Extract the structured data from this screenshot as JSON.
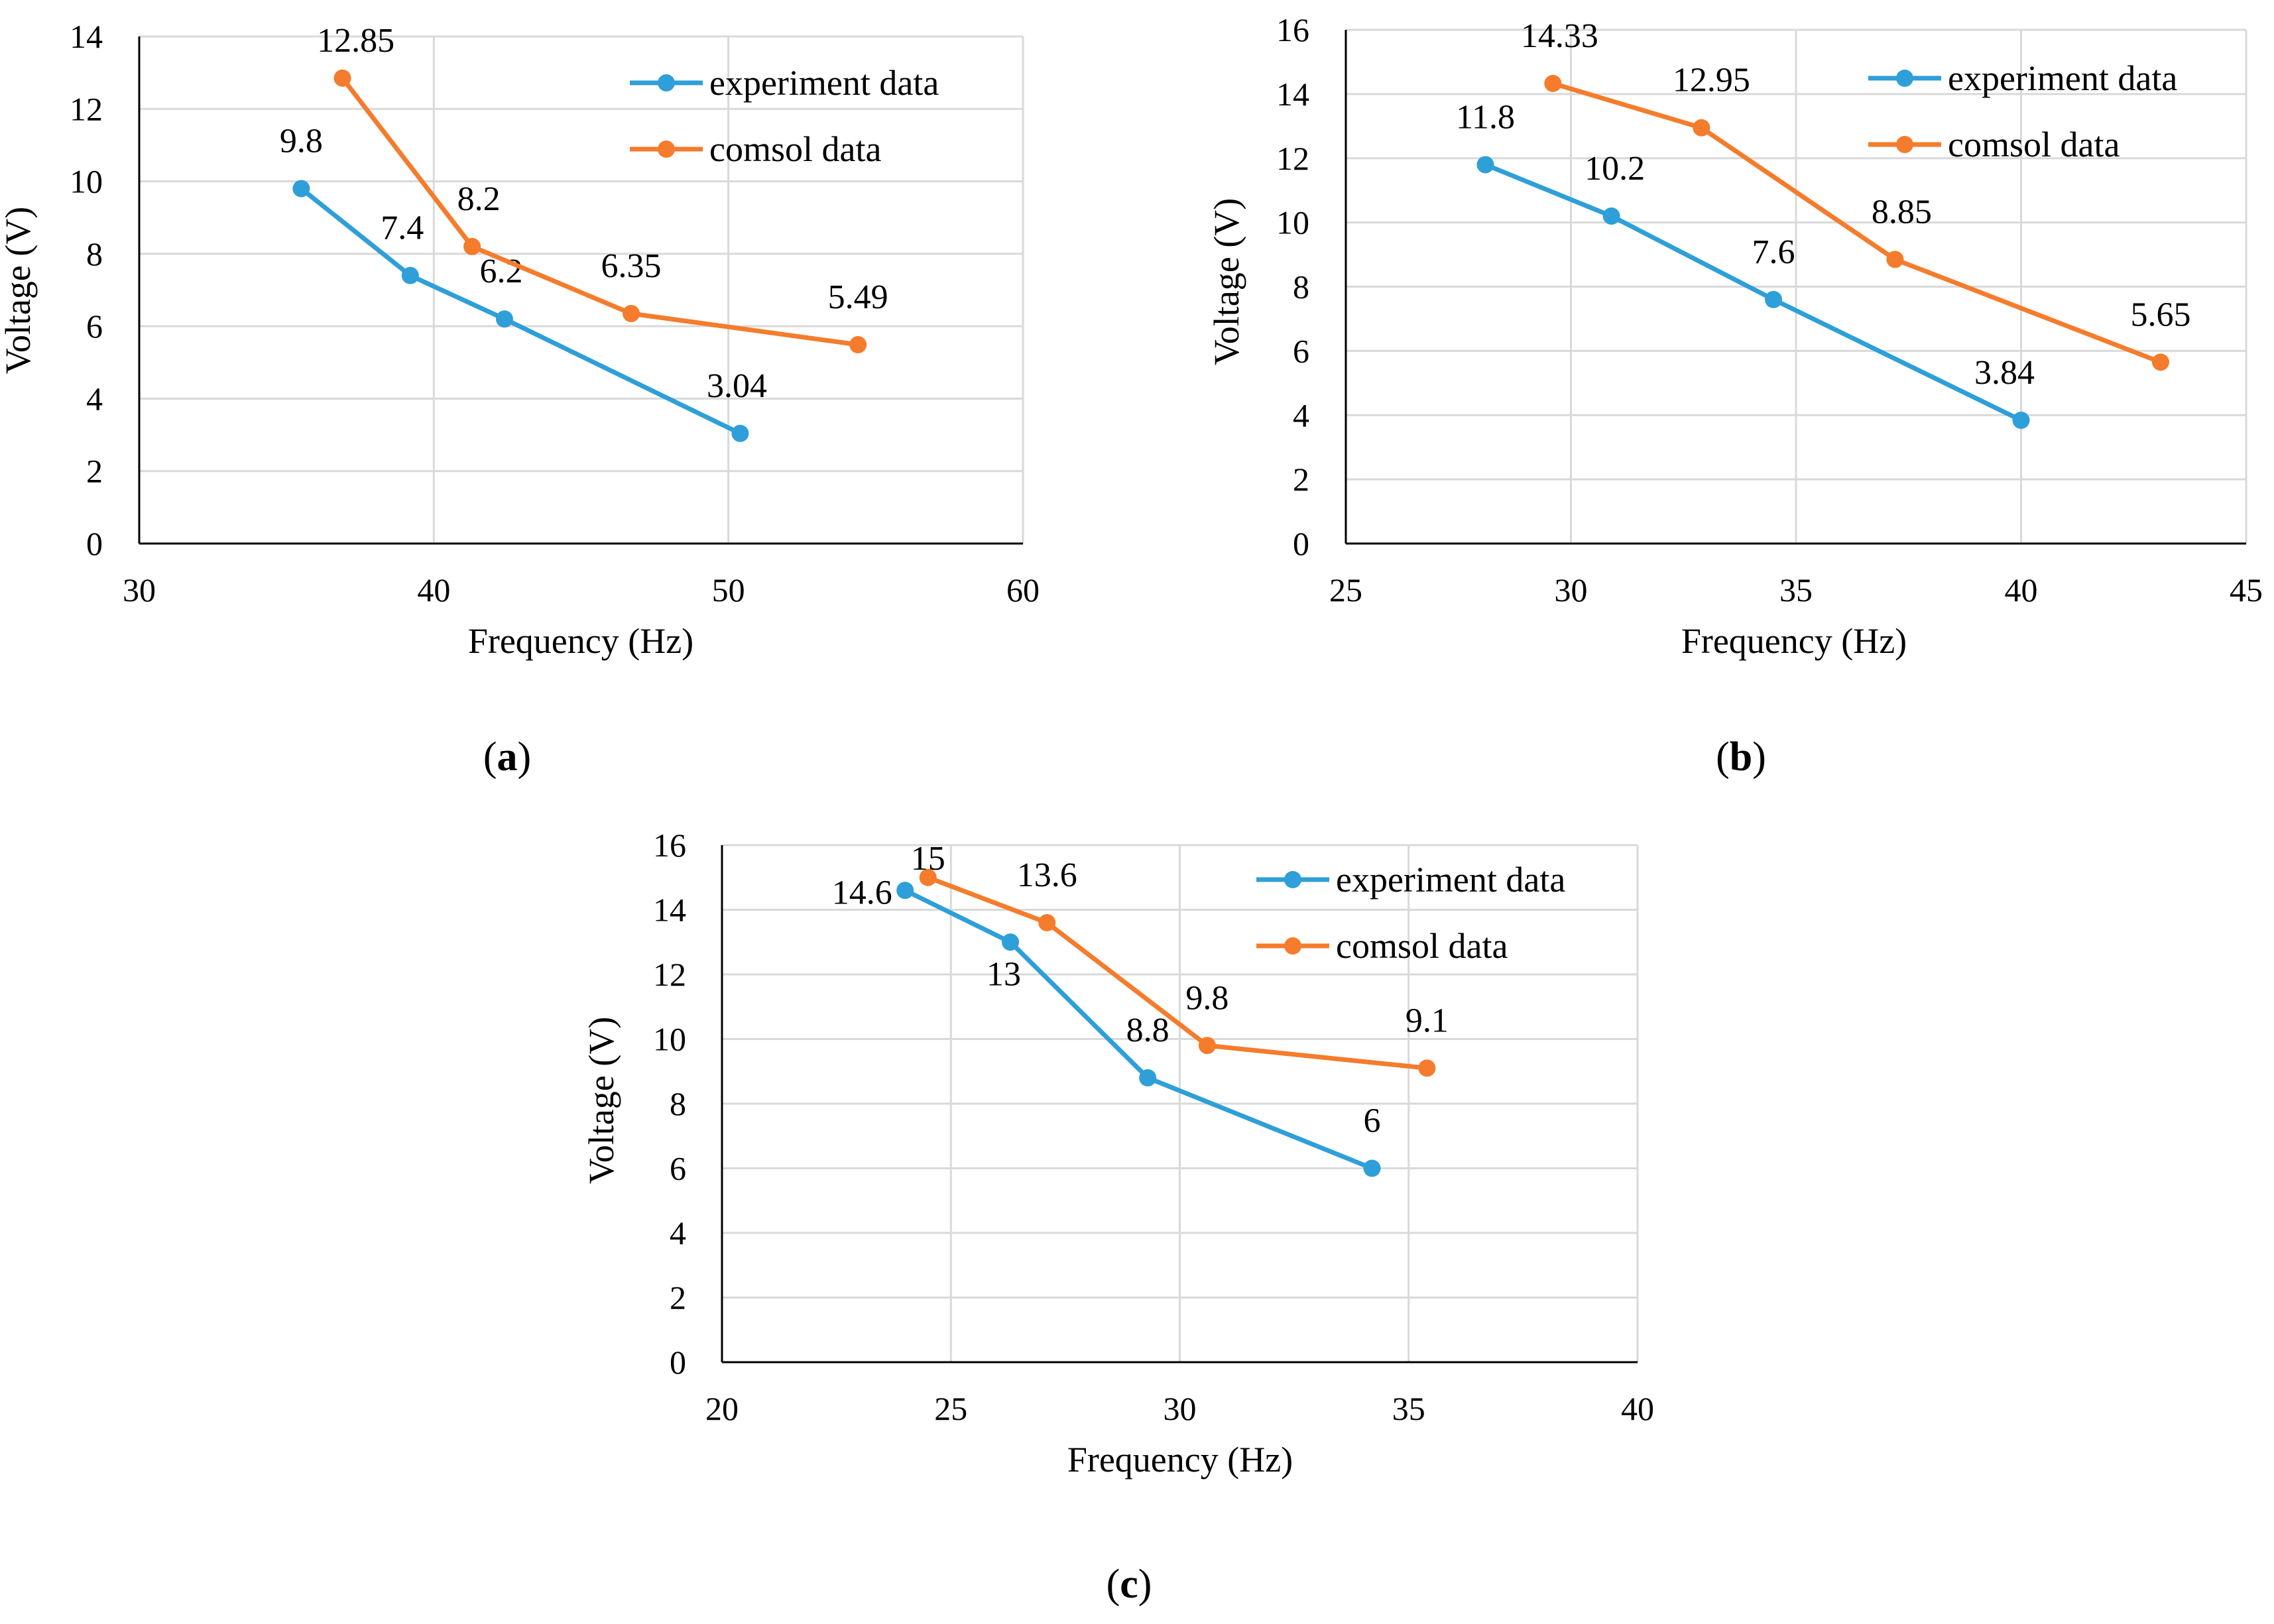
{
  "figure": {
    "panels": [
      {
        "id": "a",
        "label_open": "(",
        "label_letter": "a",
        "label_close": ")"
      },
      {
        "id": "b",
        "label_open": "(",
        "label_letter": "b",
        "label_close": ")"
      },
      {
        "id": "c",
        "label_open": "(",
        "label_letter": "c",
        "label_close": ")"
      }
    ]
  },
  "colors": {
    "experiment": "#2E9FD8",
    "comsol": "#F47C2C",
    "grid": "#D9D9D9",
    "axis": "#000000"
  },
  "chart_data": [
    {
      "id": "a",
      "type": "line",
      "title": "",
      "xlabel": "Frequency (Hz)",
      "ylabel": "Voltage (V)",
      "xlim": [
        30,
        60
      ],
      "ylim": [
        0,
        14
      ],
      "xticks": [
        30,
        40,
        50,
        60
      ],
      "yticks": [
        0,
        2,
        4,
        6,
        8,
        10,
        12,
        14
      ],
      "grid": true,
      "legend_position": "top-right",
      "series": [
        {
          "name": "experiment data",
          "color_key": "experiment",
          "x": [
            35.5,
            39.2,
            42.4,
            50.4
          ],
          "y": [
            9.8,
            7.4,
            6.2,
            3.04
          ],
          "labels": [
            "9.8",
            "7.4",
            "6.2",
            "3.04"
          ]
        },
        {
          "name": "comsol data",
          "color_key": "comsol",
          "x": [
            36.9,
            41.3,
            46.7,
            54.4
          ],
          "y": [
            12.85,
            8.2,
            6.35,
            5.49
          ],
          "labels": [
            "12.85",
            "8.2",
            "6.35",
            "5.49"
          ]
        }
      ]
    },
    {
      "id": "b",
      "type": "line",
      "title": "",
      "xlabel": "Frequency (Hz)",
      "ylabel": "Voltage (V)",
      "xlim": [
        25,
        45
      ],
      "ylim": [
        0,
        16
      ],
      "xticks": [
        25,
        30,
        35,
        40,
        45
      ],
      "yticks": [
        0,
        2,
        4,
        6,
        8,
        10,
        12,
        14,
        16
      ],
      "grid": true,
      "legend_position": "top-right",
      "series": [
        {
          "name": "experiment data",
          "color_key": "experiment",
          "x": [
            28.1,
            30.9,
            34.5,
            40.0
          ],
          "y": [
            11.8,
            10.2,
            7.6,
            3.84
          ],
          "labels": [
            "11.8",
            "10.2",
            "7.6",
            "3.84"
          ]
        },
        {
          "name": "comsol data",
          "color_key": "comsol",
          "x": [
            29.6,
            32.9,
            37.2,
            43.1
          ],
          "y": [
            14.33,
            12.95,
            8.85,
            5.65
          ],
          "labels": [
            "14.33",
            "12.95",
            "8.85",
            "5.65"
          ]
        }
      ]
    },
    {
      "id": "c",
      "type": "line",
      "title": "",
      "xlabel": "Frequency (Hz)",
      "ylabel": "Voltage (V)",
      "xlim": [
        20,
        40
      ],
      "ylim": [
        0,
        16
      ],
      "xticks": [
        20,
        25,
        30,
        35,
        40
      ],
      "yticks": [
        0,
        2,
        4,
        6,
        8,
        10,
        12,
        14,
        16
      ],
      "grid": true,
      "legend_position": "top-right",
      "series": [
        {
          "name": "experiment data",
          "color_key": "experiment",
          "x": [
            24.0,
            26.3,
            29.3,
            34.2
          ],
          "y": [
            14.6,
            13.0,
            8.8,
            6.0
          ],
          "labels": [
            "14.6",
            "13",
            "8.8",
            "6"
          ]
        },
        {
          "name": "comsol data",
          "color_key": "comsol",
          "x": [
            24.5,
            27.1,
            30.6,
            35.4
          ],
          "y": [
            15.0,
            13.6,
            9.8,
            9.1
          ],
          "labels": [
            "15",
            "13.6",
            "9.8",
            "9.1"
          ]
        }
      ]
    }
  ]
}
